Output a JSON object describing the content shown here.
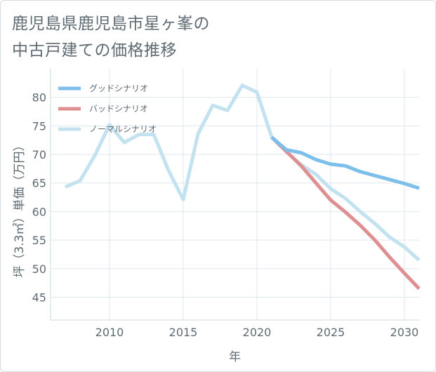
{
  "title": {
    "line1": "鹿児島県鹿児島市星ヶ峯の",
    "line2": "中古戸建ての価格推移"
  },
  "chart_data": {
    "type": "line",
    "xlabel": "年",
    "ylabel": "坪（3.3㎡）単価（万円）",
    "xlim": [
      2006.0,
      2031.0
    ],
    "ylim": [
      41.0,
      85.0
    ],
    "x_ticks": [
      2010,
      2015,
      2020,
      2025,
      2030
    ],
    "y_ticks": [
      45,
      50,
      55,
      60,
      65,
      70,
      75,
      80
    ],
    "grid": true,
    "legend_position": "top-left",
    "series": [
      {
        "name": "グッドシナリオ",
        "color": "#7cbfea",
        "x": [
          2021,
          2022,
          2023,
          2024,
          2025,
          2026,
          2027,
          2028,
          2029,
          2030,
          2031
        ],
        "y": [
          73.0,
          70.8,
          70.3,
          69.1,
          68.3,
          68.0,
          67.0,
          66.3,
          65.6,
          64.9,
          64.1
        ]
      },
      {
        "name": "バッドシナリオ",
        "color": "#de8f92",
        "x": [
          2021,
          2022,
          2023,
          2024,
          2025,
          2026,
          2027,
          2028,
          2029,
          2030,
          2031
        ],
        "y": [
          73.0,
          70.5,
          68.0,
          65.0,
          62.0,
          59.9,
          57.6,
          55.0,
          52.0,
          49.2,
          46.5
        ]
      },
      {
        "name": "ノーマルシナリオ",
        "color": "#c2e2f0",
        "x": [
          2007,
          2008,
          2009,
          2010,
          2011,
          2012,
          2013,
          2014,
          2015,
          2016,
          2017,
          2018,
          2019,
          2020,
          2021,
          2022,
          2023,
          2024,
          2025,
          2026,
          2027,
          2028,
          2029,
          2030,
          2031
        ],
        "y": [
          64.3,
          65.4,
          69.8,
          75.2,
          72.1,
          73.5,
          73.5,
          67.2,
          62.1,
          73.6,
          78.6,
          77.7,
          82.1,
          80.9,
          73.0,
          70.5,
          68.2,
          66.5,
          64.0,
          62.3,
          60.0,
          57.9,
          55.5,
          53.8,
          51.5
        ]
      }
    ]
  }
}
